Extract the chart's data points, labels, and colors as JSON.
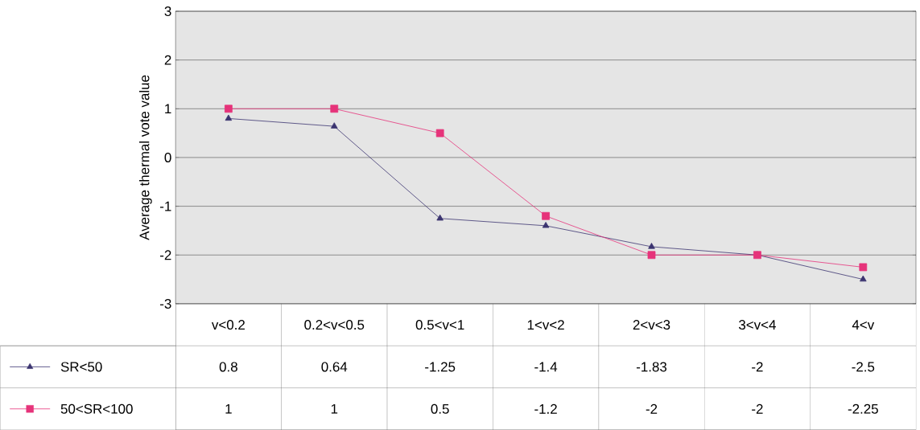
{
  "chart_data": {
    "type": "line",
    "ylabel": "Average thermal vote value",
    "categories": [
      "v<0.2",
      "0.2<v<0.5",
      "0.5<v<1",
      "1<v<2",
      "2<v<3",
      "3<v<4",
      "4<v"
    ],
    "series": [
      {
        "name": "SR<50",
        "color": "#3b3470",
        "marker": "triangle",
        "values": [
          0.8,
          0.64,
          -1.25,
          -1.4,
          -1.83,
          -2,
          -2.5
        ]
      },
      {
        "name": "50<SR<100",
        "color": "#e6337a",
        "marker": "square",
        "values": [
          1,
          1,
          0.5,
          -1.2,
          -2,
          -2,
          -2.25
        ]
      }
    ],
    "ylim": [
      -3,
      3
    ],
    "yticks": [
      -3,
      -2,
      -1,
      0,
      1,
      2,
      3
    ],
    "grid": "y",
    "tick_labels": "y",
    "data_labels": true,
    "legend": "bottom",
    "line_style": "solid"
  }
}
